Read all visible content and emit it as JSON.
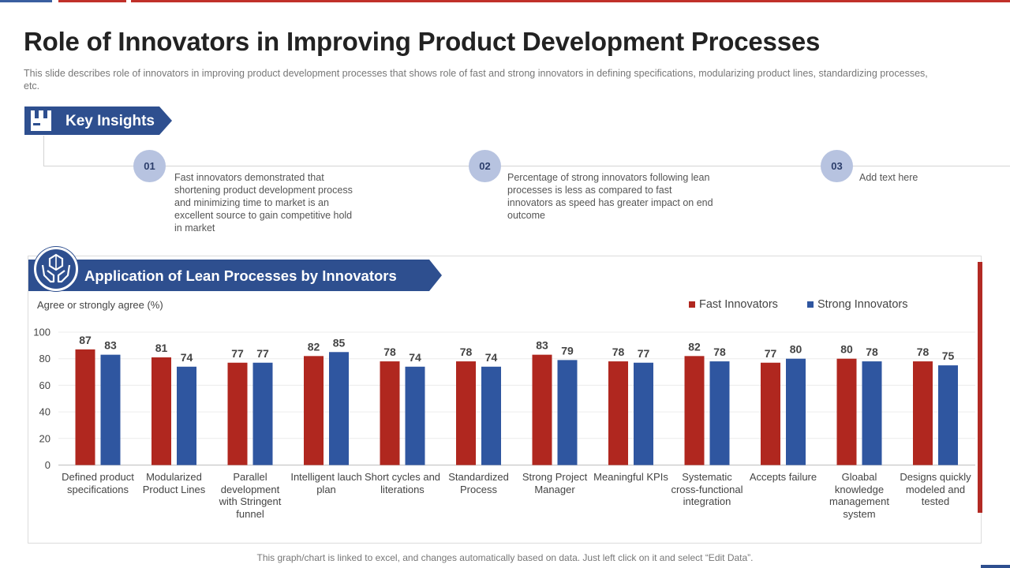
{
  "title": "Role of Innovators in Improving Product Development Processes",
  "subtitle": "This slide describes role of innovators  in improving  product development  processes that shows role of fast and strong innovators  in defining specifications, modularizing product lines, standardizing processes, etc.",
  "key_insights": {
    "label": "Key Insights",
    "items": [
      {
        "number": "01",
        "text": "Fast innovators  demonstrated  that shortening product development process and minimizing time to market is an excellent source to gain competitive  hold in market"
      },
      {
        "number": "02",
        "text": "Percentage  of strong innovators  following lean processes is less as compared  to fast innovators  as speed has greater impact on end outcome"
      },
      {
        "number": "03",
        "text": "Add text here"
      }
    ]
  },
  "chart_section_label": "Application of Lean Processes by Innovators",
  "footer": "This graph/chart is linked to excel,  and changes automatically based on data. Just left click on it and select “Edit Data”.",
  "colors": {
    "fast": "#b0271f",
    "strong": "#2f56a0",
    "accent": "#2e4f8f"
  },
  "chart_data": {
    "type": "bar",
    "ylabel": "Agree or strongly agree (%)",
    "ylim": [
      0,
      100
    ],
    "yticks": [
      0,
      20,
      40,
      60,
      80,
      100
    ],
    "legend_position": "top-right",
    "categories": [
      "Defined product specifications",
      "Modularized Product Lines",
      "Parallel development with Stringent funnel",
      "Intelligent lauch plan",
      "Short cycles and literations",
      "Standardized Process",
      "Strong Project Manager",
      "Meaningful KPIs",
      "Systematic cross-functional integration",
      "Accepts failure",
      "Gloabal knowledge management system",
      "Designs quickly modeled and tested"
    ],
    "series": [
      {
        "name": "Fast Innovators",
        "values": [
          87,
          81,
          77,
          82,
          78,
          78,
          83,
          78,
          82,
          77,
          80,
          78
        ]
      },
      {
        "name": "Strong Innovators",
        "values": [
          83,
          74,
          77,
          85,
          74,
          74,
          79,
          77,
          78,
          80,
          78,
          75
        ]
      }
    ]
  }
}
